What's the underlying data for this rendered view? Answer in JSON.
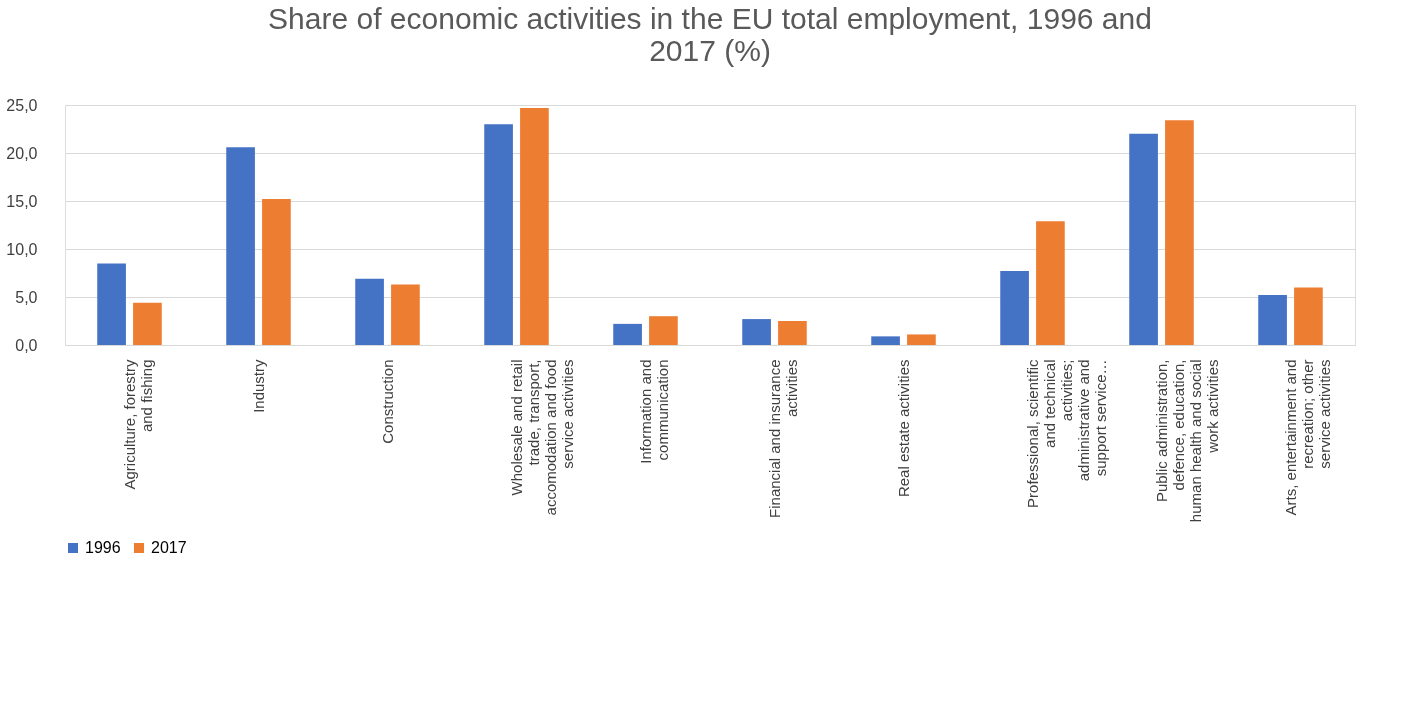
{
  "chart_data": {
    "type": "bar",
    "title": "Share of economic activities in the EU total employment, 1996 and 2017 (%)",
    "categories": [
      "Agriculture, forestry and fishing",
      "Industry",
      "Construction",
      "Wholesale and retail trade, transport, accomodation and food service activities",
      "Information and communication",
      "Financial and insurance activities",
      "Real estate activities",
      "Professional, scientific and technical activities; administrative and support service…",
      "Public administration, defence, education, human health and social work activities",
      "Arts, entertainment and recreation; other service activities"
    ],
    "series": [
      {
        "name": "1996",
        "color": "#4472c4",
        "values": [
          8.5,
          20.6,
          6.9,
          23.0,
          2.2,
          2.7,
          0.9,
          7.7,
          22.0,
          5.2
        ]
      },
      {
        "name": "2017",
        "color": "#ed7d31",
        "values": [
          4.4,
          15.2,
          6.3,
          24.7,
          3.0,
          2.5,
          1.1,
          12.9,
          23.4,
          6.0
        ]
      }
    ],
    "ylim": [
      0,
      25
    ],
    "yticks": [
      {
        "value": 0,
        "label": "0,0"
      },
      {
        "value": 5,
        "label": "5,0"
      },
      {
        "value": 10,
        "label": "10,0"
      },
      {
        "value": 15,
        "label": "15,0"
      },
      {
        "value": 20,
        "label": "20,0"
      },
      {
        "value": 25,
        "label": "25,0"
      }
    ],
    "grid": "y",
    "legend": "bottom"
  }
}
